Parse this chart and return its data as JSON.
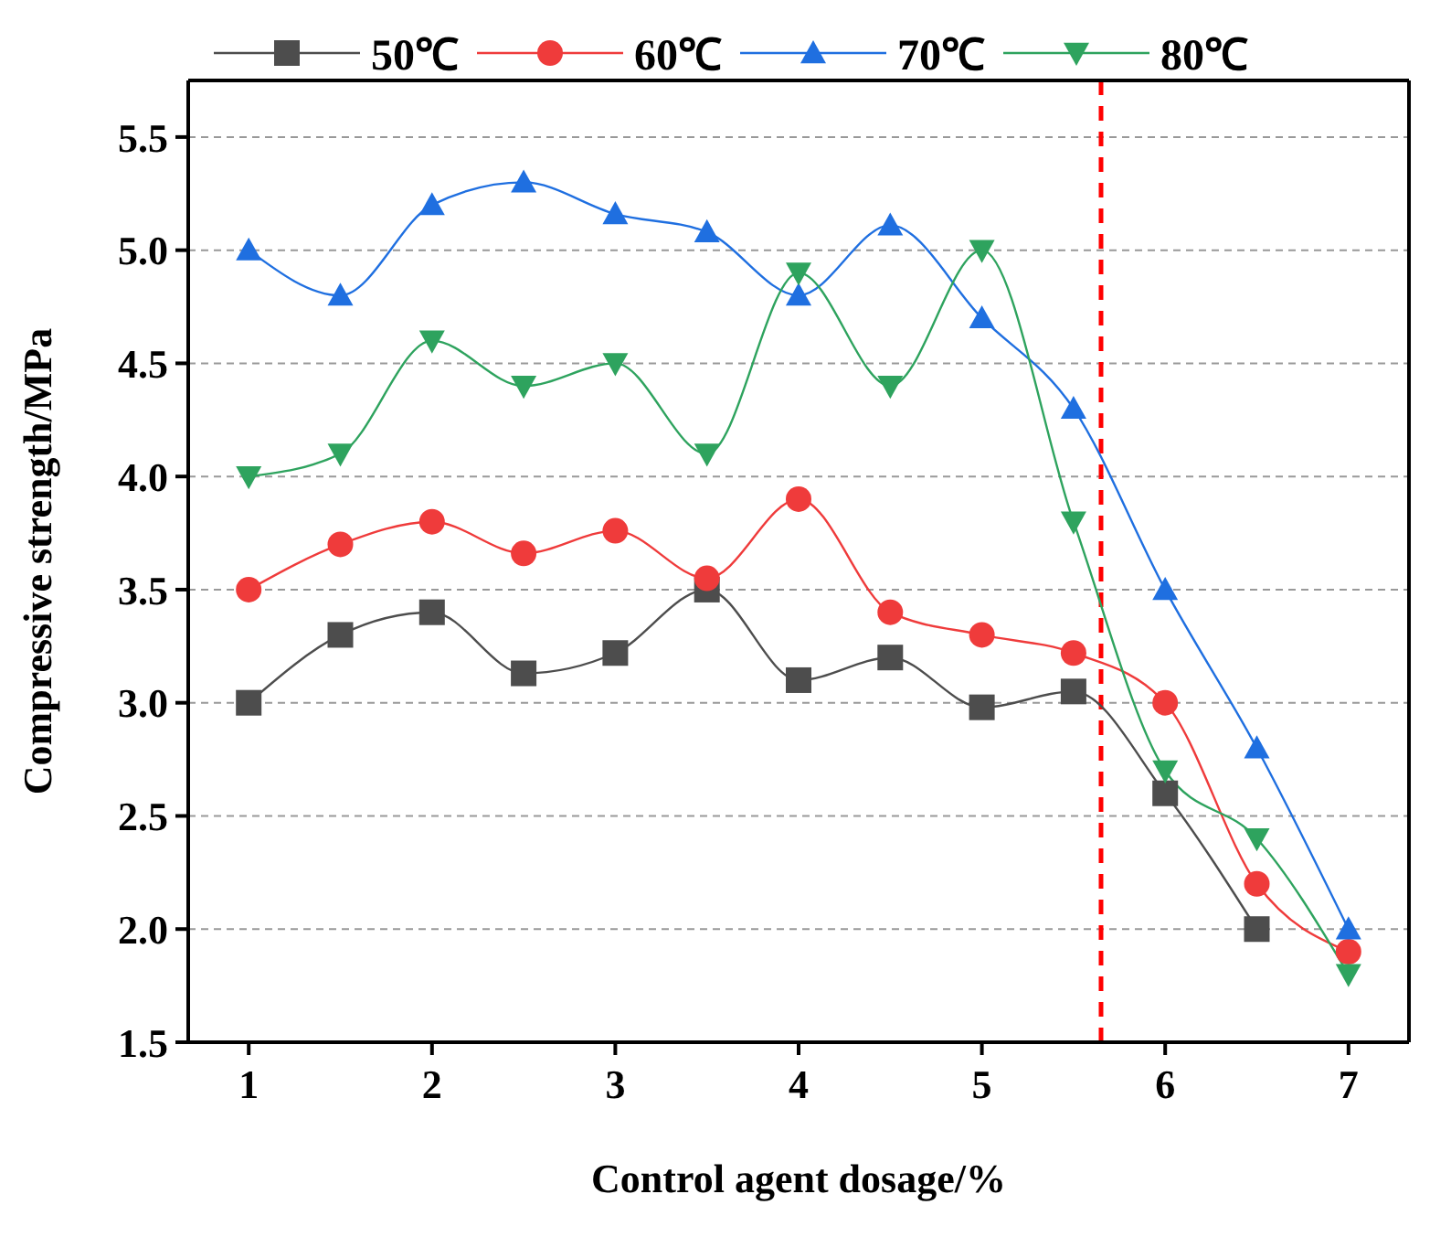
{
  "chart_data": {
    "type": "line",
    "xlabel": "Control agent dosage/%",
    "ylabel": "Compressive strength/MPa",
    "x": [
      1,
      1.5,
      2,
      2.5,
      3,
      3.5,
      4,
      4.5,
      5,
      5.5,
      6,
      6.5,
      7
    ],
    "series": [
      {
        "name": "50℃",
        "color": "#4d4d4d",
        "marker": "square",
        "values": [
          3.0,
          3.3,
          3.4,
          3.13,
          3.22,
          3.5,
          3.1,
          3.2,
          2.98,
          3.05,
          2.6,
          2.0,
          null
        ]
      },
      {
        "name": "60℃",
        "color": "#ef3b3b",
        "marker": "circle",
        "values": [
          3.5,
          3.7,
          3.8,
          3.66,
          3.76,
          3.55,
          3.9,
          3.4,
          3.3,
          3.22,
          3.0,
          2.2,
          1.9
        ]
      },
      {
        "name": "70℃",
        "color": "#1f6fe0",
        "marker": "triangle",
        "values": [
          5.0,
          4.8,
          5.2,
          5.3,
          5.16,
          5.08,
          4.8,
          5.11,
          4.7,
          4.3,
          3.5,
          2.8,
          2.0
        ]
      },
      {
        "name": "80℃",
        "color": "#2ea35e",
        "marker": "triangle-down",
        "values": [
          4.0,
          4.1,
          4.6,
          4.4,
          4.5,
          4.1,
          4.9,
          4.4,
          5.0,
          3.8,
          2.7,
          2.4,
          1.8
        ]
      }
    ],
    "xlim": [
      0.67,
      7.33
    ],
    "xticks": [
      1,
      2,
      3,
      4,
      5,
      6,
      7
    ],
    "ylim": [
      1.5,
      5.75
    ],
    "yticks": [
      {
        "value": 1.5,
        "label": "1.5"
      },
      {
        "value": 2,
        "label": "2.0"
      },
      {
        "value": 2.5,
        "label": "2.5"
      },
      {
        "value": 3,
        "label": "3.0"
      },
      {
        "value": 3.5,
        "label": "3.5"
      },
      {
        "value": 4,
        "label": "4.0"
      },
      {
        "value": 4.5,
        "label": "4.5"
      },
      {
        "value": 5,
        "label": "5.0"
      },
      {
        "value": 5.5,
        "label": "5.5"
      }
    ],
    "ref_lines": [
      {
        "axis": "x",
        "value": 5.65,
        "color": "#ff0000",
        "line_style": "dashed"
      }
    ],
    "grid": "y",
    "legend": "top",
    "line_style": "solid"
  }
}
